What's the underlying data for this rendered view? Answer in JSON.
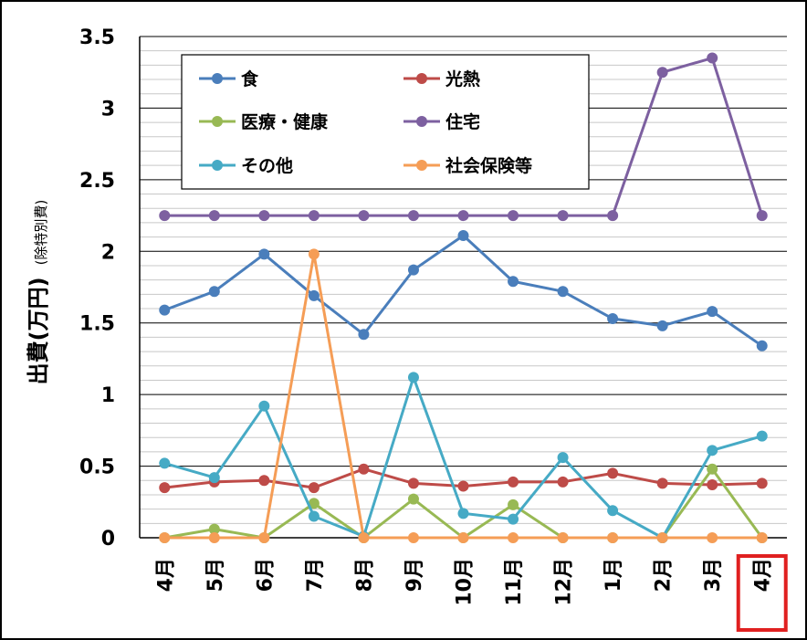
{
  "chart_data": {
    "type": "line",
    "title": "",
    "ylabel": "出費(万円)",
    "ylabel_note": "(除特別費)",
    "xlabel": "",
    "ylim": [
      0,
      3.5
    ],
    "ytick_labels": [
      "0",
      "0.5",
      "1",
      "1.5",
      "2",
      "2.5",
      "3",
      "3.5"
    ],
    "categories": [
      "4月",
      "5月",
      "6月",
      "7月",
      "8月",
      "9月",
      "10月",
      "11月",
      "12月",
      "1月",
      "2月",
      "3月",
      "4月"
    ],
    "highlighted_category_index": 12,
    "highlight_color": "#e02020",
    "grid": "horizontal",
    "legend_position": "top-left",
    "series": [
      {
        "name": "食",
        "color": "#4a7ebb",
        "values": [
          1.59,
          1.72,
          1.98,
          1.69,
          1.42,
          1.87,
          2.11,
          1.79,
          1.72,
          1.53,
          1.48,
          1.58,
          1.34
        ]
      },
      {
        "name": "光熱",
        "color": "#be4b48",
        "values": [
          0.35,
          0.39,
          0.4,
          0.35,
          0.48,
          0.38,
          0.36,
          0.39,
          0.39,
          0.45,
          0.38,
          0.37,
          0.38
        ]
      },
      {
        "name": "医療・健康",
        "color": "#98b954",
        "values": [
          0,
          0.06,
          0,
          0.24,
          0,
          0.27,
          0,
          0.23,
          0,
          0,
          0,
          0.48,
          0
        ]
      },
      {
        "name": "住宅",
        "color": "#7d60a0",
        "values": [
          2.25,
          2.25,
          2.25,
          2.25,
          2.25,
          2.25,
          2.25,
          2.25,
          2.25,
          2.25,
          3.25,
          3.35,
          2.25
        ]
      },
      {
        "name": "その他",
        "color": "#46aac5",
        "values": [
          0.52,
          0.42,
          0.92,
          0.15,
          0.01,
          1.12,
          0.17,
          0.13,
          0.56,
          0.19,
          0,
          0.61,
          0.71
        ]
      },
      {
        "name": "社会保険等",
        "color": "#f59d56",
        "values": [
          0,
          0,
          0,
          1.98,
          0,
          0,
          0,
          0,
          0,
          0,
          0,
          0,
          0
        ]
      }
    ]
  }
}
